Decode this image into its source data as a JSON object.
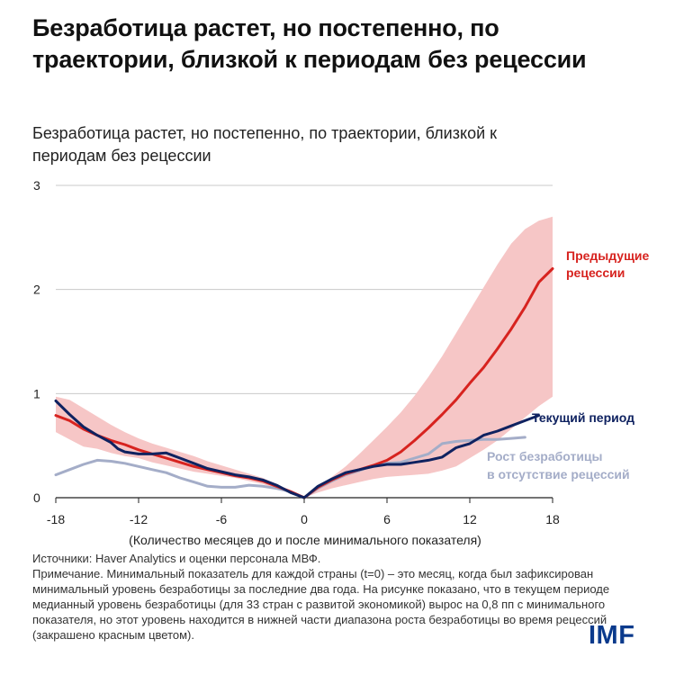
{
  "headline": "Безработица растет, но постепенно, по траектории, близкой к периодам без рецессии",
  "chart_data": {
    "type": "line",
    "title": "Безработица растет, но постепенно, по траектории, близкой к периодам без рецессии",
    "xlabel": "(Количество месяцев до и после минимального показателя)",
    "ylabel": "",
    "xlim": [
      -18,
      18
    ],
    "ylim": [
      0,
      3
    ],
    "x_ticks": [
      -18,
      -12,
      -6,
      0,
      6,
      12,
      18
    ],
    "y_ticks": [
      0,
      1,
      2,
      3
    ],
    "grid": "horizontal",
    "band": {
      "name": "Диапазон роста безработицы во время рецессий",
      "color": "#f6c6c6",
      "x": [
        -18,
        -17,
        -16,
        -15,
        -14,
        -13,
        -12,
        -11,
        -10,
        -9,
        -8,
        -7,
        -6,
        -5,
        -4,
        -3,
        -2,
        -1,
        0,
        1,
        2,
        3,
        4,
        5,
        6,
        7,
        8,
        9,
        10,
        11,
        12,
        13,
        14,
        15,
        16,
        17,
        18
      ],
      "upper": [
        0.97,
        0.94,
        0.86,
        0.78,
        0.7,
        0.63,
        0.57,
        0.52,
        0.48,
        0.44,
        0.4,
        0.35,
        0.31,
        0.27,
        0.23,
        0.19,
        0.13,
        0.07,
        0.0,
        0.1,
        0.2,
        0.3,
        0.42,
        0.55,
        0.68,
        0.82,
        0.98,
        1.16,
        1.36,
        1.58,
        1.8,
        2.02,
        2.24,
        2.44,
        2.58,
        2.66,
        2.7
      ],
      "lower": [
        0.63,
        0.56,
        0.49,
        0.47,
        0.43,
        0.4,
        0.38,
        0.34,
        0.31,
        0.28,
        0.25,
        0.23,
        0.21,
        0.19,
        0.16,
        0.13,
        0.09,
        0.04,
        0.0,
        0.05,
        0.09,
        0.12,
        0.15,
        0.18,
        0.2,
        0.21,
        0.22,
        0.23,
        0.26,
        0.3,
        0.38,
        0.46,
        0.55,
        0.66,
        0.77,
        0.88,
        0.97
      ]
    },
    "series": [
      {
        "name": "Предыдущие рецессии",
        "color": "#d7231f",
        "x": [
          -18,
          -17,
          -16,
          -15,
          -14,
          -13,
          -12,
          -11,
          -10,
          -9,
          -8,
          -7,
          -6,
          -5,
          -4,
          -3,
          -2,
          -1,
          0,
          1,
          2,
          3,
          4,
          5,
          6,
          7,
          8,
          9,
          10,
          11,
          12,
          13,
          14,
          15,
          16,
          17,
          18
        ],
        "values": [
          0.79,
          0.74,
          0.66,
          0.6,
          0.55,
          0.51,
          0.46,
          0.42,
          0.38,
          0.34,
          0.3,
          0.27,
          0.24,
          0.21,
          0.19,
          0.16,
          0.11,
          0.06,
          0.0,
          0.1,
          0.17,
          0.23,
          0.27,
          0.31,
          0.36,
          0.44,
          0.55,
          0.67,
          0.8,
          0.94,
          1.1,
          1.25,
          1.43,
          1.62,
          1.83,
          2.07,
          2.2
        ]
      },
      {
        "name": "Текущий период",
        "color": "#0f2260",
        "x": [
          -18,
          -17,
          -16,
          -15,
          -14,
          -13.5,
          -13,
          -12,
          -11,
          -10,
          -9,
          -8,
          -7,
          -6,
          -5,
          -4,
          -3,
          -2,
          -1,
          0,
          1,
          2,
          3,
          4,
          5,
          6,
          7,
          8,
          9,
          10,
          11,
          12,
          13,
          14,
          15,
          16,
          17
        ],
        "values": [
          0.93,
          0.8,
          0.68,
          0.6,
          0.53,
          0.47,
          0.44,
          0.42,
          0.42,
          0.43,
          0.38,
          0.33,
          0.28,
          0.25,
          0.22,
          0.2,
          0.17,
          0.12,
          0.05,
          0.0,
          0.11,
          0.18,
          0.24,
          0.27,
          0.3,
          0.32,
          0.32,
          0.34,
          0.36,
          0.39,
          0.48,
          0.52,
          0.6,
          0.64,
          0.69,
          0.74,
          0.79
        ]
      },
      {
        "name": "Рост безработицы в отсутствие рецессий",
        "color": "#a4adc8",
        "x": [
          -18,
          -17,
          -16,
          -15,
          -14,
          -13,
          -12,
          -11,
          -10,
          -9,
          -8,
          -7,
          -6,
          -5,
          -4,
          -3,
          -2,
          -1,
          0,
          1,
          2,
          3,
          4,
          5,
          6,
          7,
          8,
          9,
          10,
          11,
          12,
          13,
          14,
          15,
          16
        ],
        "values": [
          0.22,
          0.27,
          0.32,
          0.36,
          0.35,
          0.33,
          0.3,
          0.27,
          0.24,
          0.19,
          0.15,
          0.11,
          0.1,
          0.1,
          0.12,
          0.11,
          0.09,
          0.06,
          0.0,
          0.09,
          0.16,
          0.22,
          0.26,
          0.31,
          0.33,
          0.34,
          0.38,
          0.42,
          0.52,
          0.54,
          0.55,
          0.56,
          0.56,
          0.57,
          0.58
        ]
      }
    ],
    "labels": {
      "prev_line1": "Предыдущие",
      "prev_line2": "рецессии",
      "current": "Текущий период",
      "norec_line1": "Рост безработицы",
      "norec_line2": "в отсутствие рецессий"
    }
  },
  "notes": {
    "sources": "Источники: Haver Analytics и оценки персонала МВФ.",
    "note": "Примечание. Минимальный показатель для каждой страны (t=0) – это месяц, когда был зафиксирован минимальный уровень безработицы за последние два года. На рисунке показано, что в текущем периоде медианный уровень безработицы (для 33 стран с развитой экономикой) вырос на 0,8 пп с минимального показателя, но этот уровень находится в нижней части диапазона роста безработицы во время рецессий (закрашено красным цветом)."
  },
  "logo": "IMF"
}
